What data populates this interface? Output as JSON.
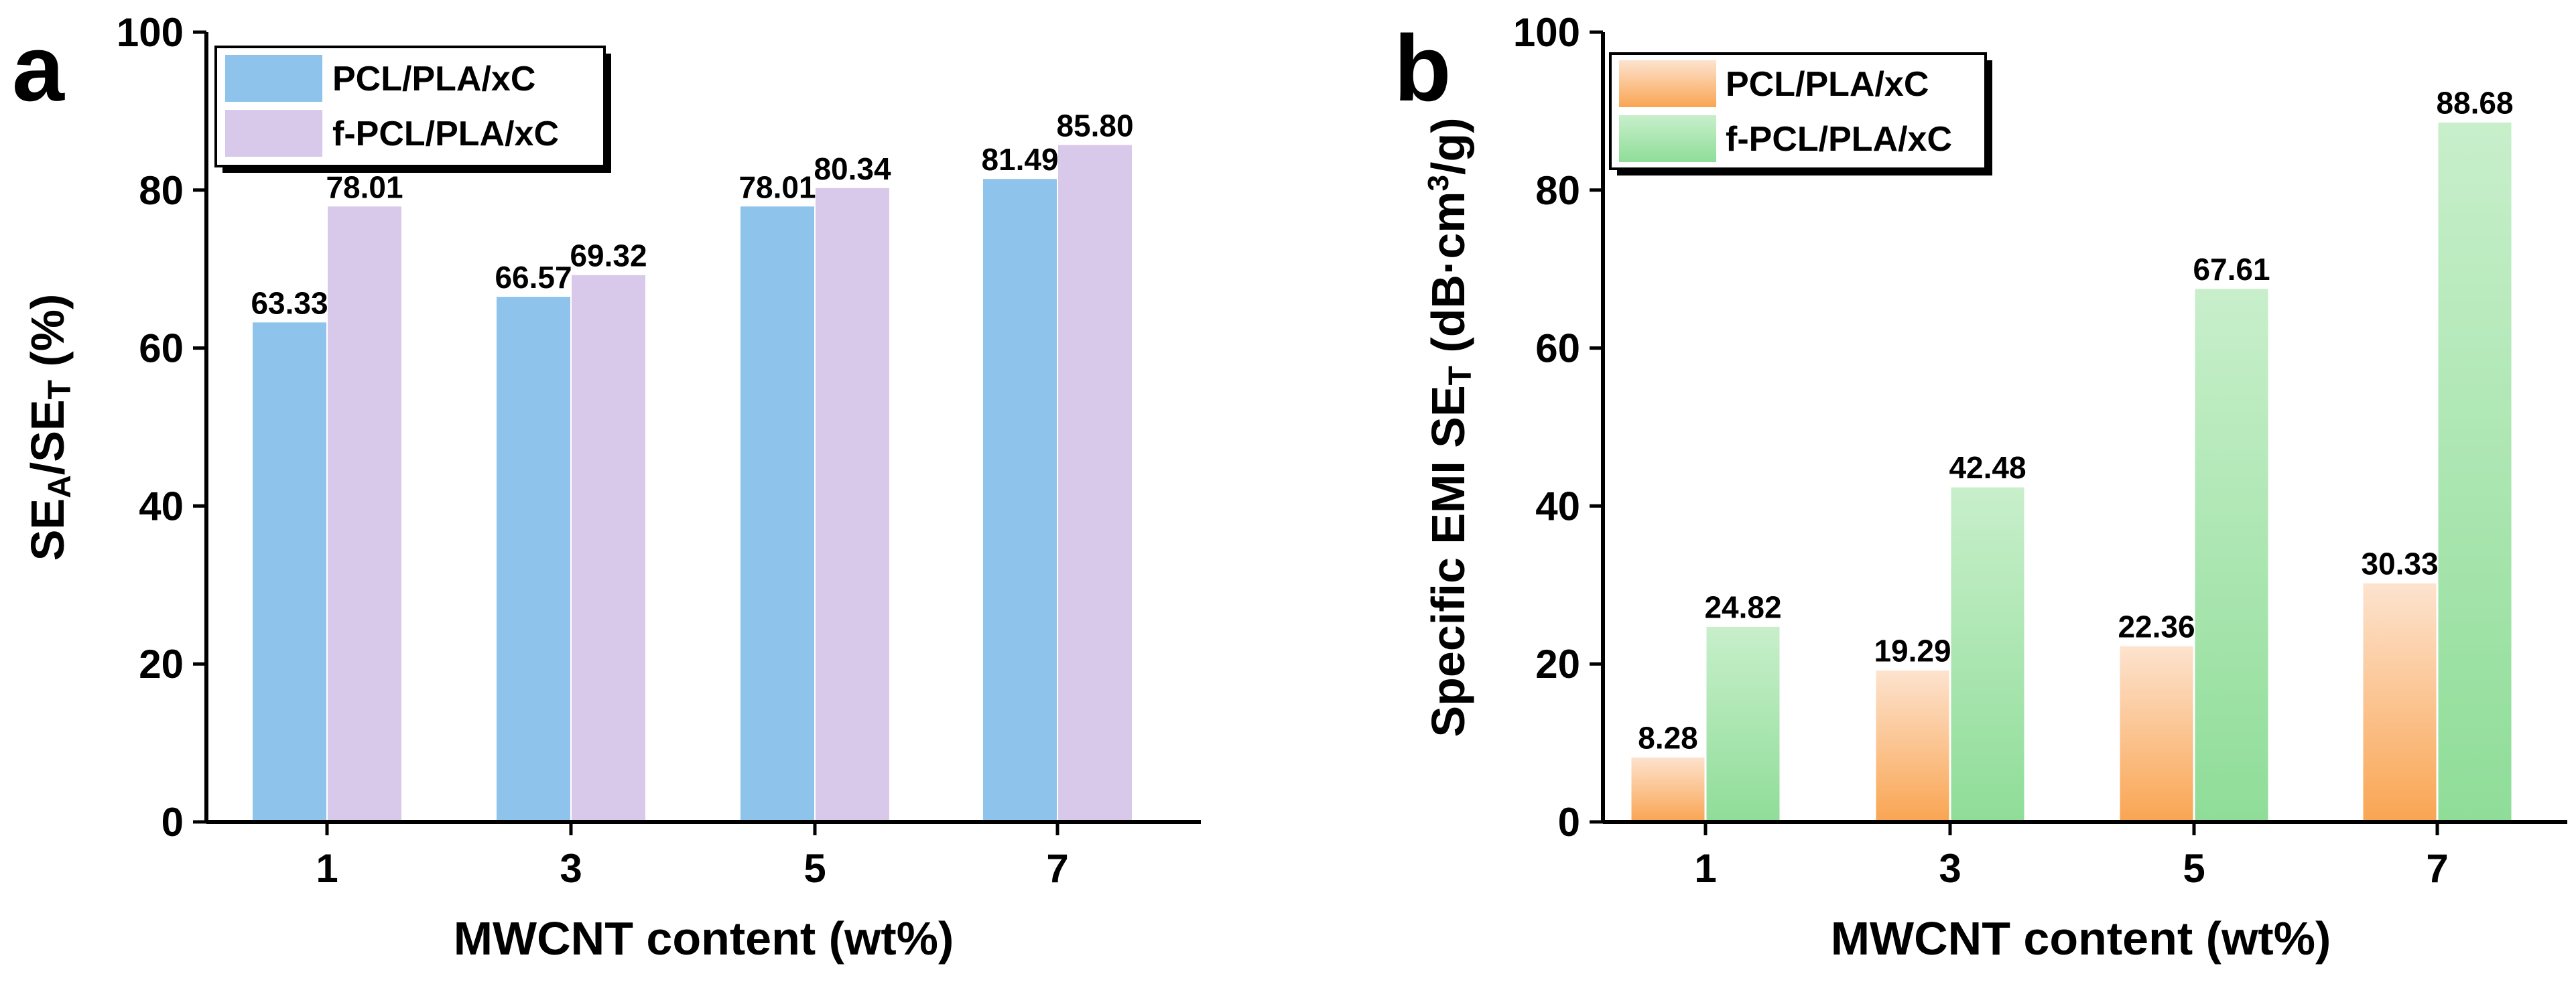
{
  "colors": {
    "a_pcl": "#8ec3ec",
    "a_fpcl": "#d8c8ea",
    "b_pcl_top": "#fde3cf",
    "b_pcl_bottom": "#f9a552",
    "b_fpcl_top": "#c8efcb",
    "b_fpcl_bottom": "#8fdd98"
  },
  "chart_data": [
    {
      "panel": "a",
      "type": "bar",
      "xlabel": "MWCNT content (wt%)",
      "ylabel_main": "SE",
      "ylabel_sub1": "A",
      "ylabel_mid": "/SE",
      "ylabel_sub2": "T",
      "ylabel_end": " (%)",
      "ylim": [
        0,
        100
      ],
      "yticks": [
        "0",
        "20",
        "40",
        "60",
        "80",
        "100"
      ],
      "categories": [
        "1",
        "3",
        "5",
        "7"
      ],
      "series": [
        {
          "name": "PCL/PLA/xC",
          "values": [
            63.33,
            66.57,
            78.01,
            81.49
          ],
          "labels": [
            "63.33",
            "66.57",
            "78.01",
            "81.49"
          ]
        },
        {
          "name": "f-PCL/PLA/xC",
          "values": [
            78.01,
            69.32,
            80.34,
            85.8
          ],
          "labels": [
            "78.01",
            "69.32",
            "80.34",
            "85.80"
          ]
        }
      ],
      "legend_position": "top-left"
    },
    {
      "panel": "b",
      "type": "bar",
      "xlabel": "MWCNT content (wt%)",
      "ylabel_main": "Specific EMI SE",
      "ylabel_sub": "T",
      "ylabel_unit_a": " (dB·cm",
      "ylabel_sup": "3",
      "ylabel_unit_b": "/g)",
      "ylim": [
        0,
        100
      ],
      "yticks": [
        "0",
        "20",
        "40",
        "60",
        "80",
        "100"
      ],
      "categories": [
        "1",
        "3",
        "5",
        "7"
      ],
      "series": [
        {
          "name": "PCL/PLA/xC",
          "values": [
            8.28,
            19.29,
            22.36,
            30.33
          ],
          "labels": [
            "8.28",
            "19.29",
            "22.36",
            "30.33"
          ]
        },
        {
          "name": "f-PCL/PLA/xC",
          "values": [
            24.82,
            42.48,
            67.61,
            88.68
          ],
          "labels": [
            "24.82",
            "42.48",
            "67.61",
            "88.68"
          ]
        }
      ],
      "legend_position": "top-left"
    }
  ]
}
